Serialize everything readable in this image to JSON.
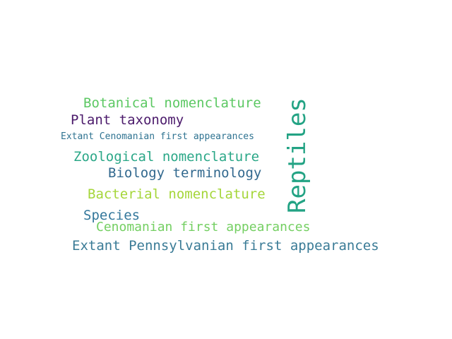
{
  "words": [
    {
      "text": "Botanical nomenclature",
      "color": "#5cc863"
    },
    {
      "text": "Plant taxonomy",
      "color": "#4b1a6b"
    },
    {
      "text": "Extant Cenomanian first appearances",
      "color": "#2f7391"
    },
    {
      "text": "Zoological nomenclature",
      "color": "#2aa787"
    },
    {
      "text": "Biology terminology",
      "color": "#31688e"
    },
    {
      "text": "Bacterial nomenclature",
      "color": "#a5d63a"
    },
    {
      "text": "Species",
      "color": "#33779b"
    },
    {
      "text": "Cenomanian first appearances",
      "color": "#74cf62"
    },
    {
      "text": "Extant Pennsylvanian first appearances",
      "color": "#3a7b96"
    },
    {
      "text": "Reptiles",
      "color": "#23a384"
    }
  ]
}
